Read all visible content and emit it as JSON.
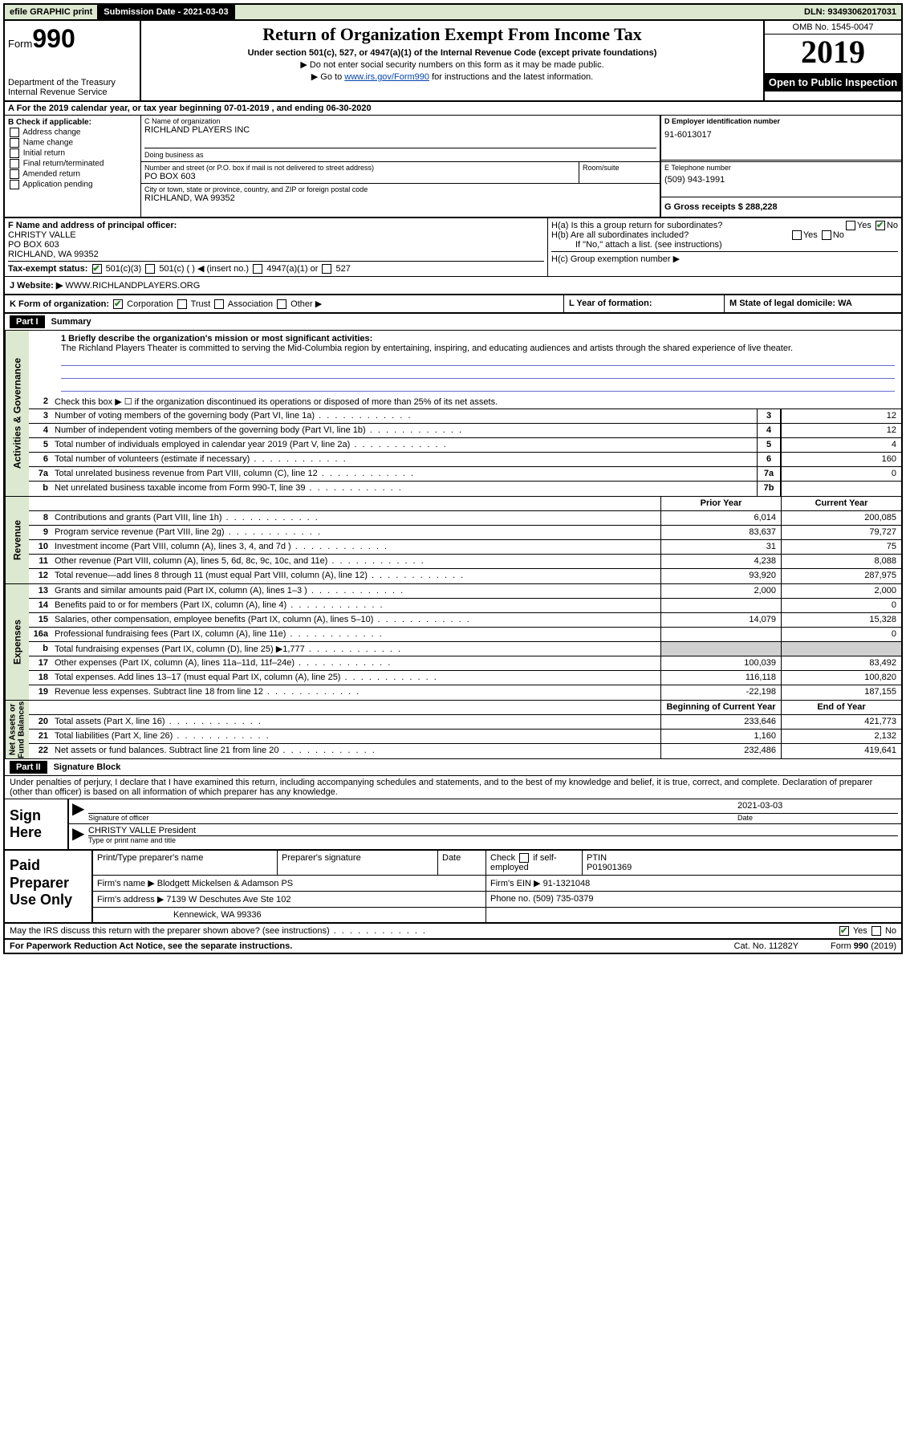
{
  "topbar": {
    "efile": "efile GRAPHIC print",
    "submission_label": "Submission Date - 2021-03-03",
    "dln_label": "DLN: 93493062017031"
  },
  "header": {
    "form_word": "Form",
    "form_num": "990",
    "dept": "Department of the Treasury",
    "irs": "Internal Revenue Service",
    "title": "Return of Organization Exempt From Income Tax",
    "sub1": "Under section 501(c), 527, or 4947(a)(1) of the Internal Revenue Code (except private foundations)",
    "sub2": "Do not enter social security numbers on this form as it may be made public.",
    "sub3_pre": "Go to ",
    "sub3_link": "www.irs.gov/Form990",
    "sub3_post": " for instructions and the latest information.",
    "omb": "OMB No. 1545-0047",
    "year": "2019",
    "open": "Open to Public Inspection"
  },
  "rowA": "A   For the 2019 calendar year, or tax year beginning 07-01-2019   , and ending 06-30-2020",
  "colB": {
    "title": "B Check if applicable:",
    "items": [
      "Address change",
      "Name change",
      "Initial return",
      "Final return/terminated",
      "Amended return",
      "Application pending"
    ]
  },
  "boxC": {
    "lbl": "C Name of organization",
    "val": "RICHLAND PLAYERS INC",
    "dba_lbl": "Doing business as",
    "dba_val": ""
  },
  "boxAddr": {
    "lbl": "Number and street (or P.O. box if mail is not delivered to street address)",
    "val": "PO BOX 603",
    "room_lbl": "Room/suite",
    "city_lbl": "City or town, state or province, country, and ZIP or foreign postal code",
    "city_val": "RICHLAND, WA  99352"
  },
  "boxD": {
    "lbl": "D Employer identification number",
    "val": "91-6013017"
  },
  "boxE": {
    "lbl": "E Telephone number",
    "val": "(509) 943-1991"
  },
  "boxG": {
    "lbl": "G Gross receipts $ 288,228"
  },
  "boxF": {
    "lbl": "F  Name and address of principal officer:",
    "v1": "CHRISTY VALLE",
    "v2": "PO BOX 603",
    "v3": "RICHLAND, WA  99352"
  },
  "boxH": {
    "a": "H(a)  Is this a group return for subordinates?",
    "b": "H(b)  Are all subordinates included?",
    "bnote": "If \"No,\" attach a list. (see instructions)",
    "c": "H(c)  Group exemption number ▶",
    "yes": "Yes",
    "no": "No"
  },
  "taxexempt": {
    "lbl": "Tax-exempt status:",
    "o1": "501(c)(3)",
    "o2": "501(c) (  ) ◀ (insert no.)",
    "o3": "4947(a)(1) or",
    "o4": "527"
  },
  "rowJ": {
    "lbl": "J   Website: ▶",
    "val": "WWW.RICHLANDPLAYERS.ORG"
  },
  "rowK": {
    "lbl": "K Form of organization:",
    "o1": "Corporation",
    "o2": "Trust",
    "o3": "Association",
    "o4": "Other ▶",
    "l_lbl": "L Year of formation:",
    "l_val": "",
    "m_lbl": "M State of legal domicile: WA"
  },
  "part1": {
    "hdr": "Part I",
    "title": "Summary"
  },
  "mission": {
    "q": "1   Briefly describe the organization's mission or most significant activities:",
    "a": "The Richland Players Theater is committed to serving the Mid-Columbia region by entertaining, inspiring, and educating audiences and artists through the shared experience of live theater."
  },
  "line2": "Check this box ▶ ☐  if the organization discontinued its operations or disposed of more than 25% of its net assets.",
  "sidelabels": {
    "gov": "Activities & Governance",
    "rev": "Revenue",
    "exp": "Expenses",
    "net": "Net Assets or Fund Balances"
  },
  "gov_lines": [
    {
      "n": "3",
      "d": "Number of voting members of the governing body (Part VI, line 1a)",
      "box": "3",
      "v": "12"
    },
    {
      "n": "4",
      "d": "Number of independent voting members of the governing body (Part VI, line 1b)",
      "box": "4",
      "v": "12"
    },
    {
      "n": "5",
      "d": "Total number of individuals employed in calendar year 2019 (Part V, line 2a)",
      "box": "5",
      "v": "4"
    },
    {
      "n": "6",
      "d": "Total number of volunteers (estimate if necessary)",
      "box": "6",
      "v": "160"
    },
    {
      "n": "7a",
      "d": "Total unrelated business revenue from Part VIII, column (C), line 12",
      "box": "7a",
      "v": "0"
    },
    {
      "n": "b",
      "d": "Net unrelated business taxable income from Form 990-T, line 39",
      "box": "7b",
      "v": ""
    }
  ],
  "colhdrs": {
    "prior": "Prior Year",
    "current": "Current Year",
    "begin": "Beginning of Current Year",
    "end": "End of Year"
  },
  "rev_lines": [
    {
      "n": "8",
      "d": "Contributions and grants (Part VIII, line 1h)",
      "p": "6,014",
      "c": "200,085"
    },
    {
      "n": "9",
      "d": "Program service revenue (Part VIII, line 2g)",
      "p": "83,637",
      "c": "79,727"
    },
    {
      "n": "10",
      "d": "Investment income (Part VIII, column (A), lines 3, 4, and 7d )",
      "p": "31",
      "c": "75"
    },
    {
      "n": "11",
      "d": "Other revenue (Part VIII, column (A), lines 5, 6d, 8c, 9c, 10c, and 11e)",
      "p": "4,238",
      "c": "8,088"
    },
    {
      "n": "12",
      "d": "Total revenue—add lines 8 through 11 (must equal Part VIII, column (A), line 12)",
      "p": "93,920",
      "c": "287,975"
    }
  ],
  "exp_lines": [
    {
      "n": "13",
      "d": "Grants and similar amounts paid (Part IX, column (A), lines 1–3 )",
      "p": "2,000",
      "c": "2,000"
    },
    {
      "n": "14",
      "d": "Benefits paid to or for members (Part IX, column (A), line 4)",
      "p": "",
      "c": "0"
    },
    {
      "n": "15",
      "d": "Salaries, other compensation, employee benefits (Part IX, column (A), lines 5–10)",
      "p": "14,079",
      "c": "15,328"
    },
    {
      "n": "16a",
      "d": "Professional fundraising fees (Part IX, column (A), line 11e)",
      "p": "",
      "c": "0"
    },
    {
      "n": "b",
      "d": "Total fundraising expenses (Part IX, column (D), line 25) ▶1,777",
      "p": "SHADE",
      "c": "SHADE"
    },
    {
      "n": "17",
      "d": "Other expenses (Part IX, column (A), lines 11a–11d, 11f–24e)",
      "p": "100,039",
      "c": "83,492"
    },
    {
      "n": "18",
      "d": "Total expenses. Add lines 13–17 (must equal Part IX, column (A), line 25)",
      "p": "116,118",
      "c": "100,820"
    },
    {
      "n": "19",
      "d": "Revenue less expenses. Subtract line 18 from line 12",
      "p": "-22,198",
      "c": "187,155"
    }
  ],
  "net_lines": [
    {
      "n": "20",
      "d": "Total assets (Part X, line 16)",
      "p": "233,646",
      "c": "421,773"
    },
    {
      "n": "21",
      "d": "Total liabilities (Part X, line 26)",
      "p": "1,160",
      "c": "2,132"
    },
    {
      "n": "22",
      "d": "Net assets or fund balances. Subtract line 21 from line 20",
      "p": "232,486",
      "c": "419,641"
    }
  ],
  "part2": {
    "hdr": "Part II",
    "title": "Signature Block"
  },
  "sig_decl": "Under penalties of perjury, I declare that I have examined this return, including accompanying schedules and statements, and to the best of my knowledge and belief, it is true, correct, and complete. Declaration of preparer (other than officer) is based on all information of which preparer has any knowledge.",
  "sign": {
    "here": "Sign Here",
    "sig_lbl": "Signature of officer",
    "date_lbl": "Date",
    "date_val": "2021-03-03",
    "name": "CHRISTY VALLE  President",
    "name_lbl": "Type or print name and title"
  },
  "prep": {
    "title": "Paid Preparer Use Only",
    "c1": "Print/Type preparer's name",
    "c2": "Preparer's signature",
    "c3": "Date",
    "c4a": "Check",
    "c4b": "if self-employed",
    "c5": "PTIN",
    "c5v": "P01901369",
    "firm_lbl": "Firm's name    ▶",
    "firm_val": "Blodgett Mickelsen & Adamson PS",
    "ein_lbl": "Firm's EIN ▶",
    "ein_val": "91-1321048",
    "addr_lbl": "Firm's address ▶",
    "addr_val": "7139 W Deschutes Ave Ste 102",
    "addr2": "Kennewick, WA  99336",
    "phone_lbl": "Phone no.",
    "phone_val": "(509) 735-0379"
  },
  "discuss": {
    "q": "May the IRS discuss this return with the preparer shown above? (see instructions)",
    "yes": "Yes",
    "no": "No"
  },
  "footer": {
    "l": "For Paperwork Reduction Act Notice, see the separate instructions.",
    "c": "Cat. No. 11282Y",
    "r": "Form 990 (2019)"
  }
}
